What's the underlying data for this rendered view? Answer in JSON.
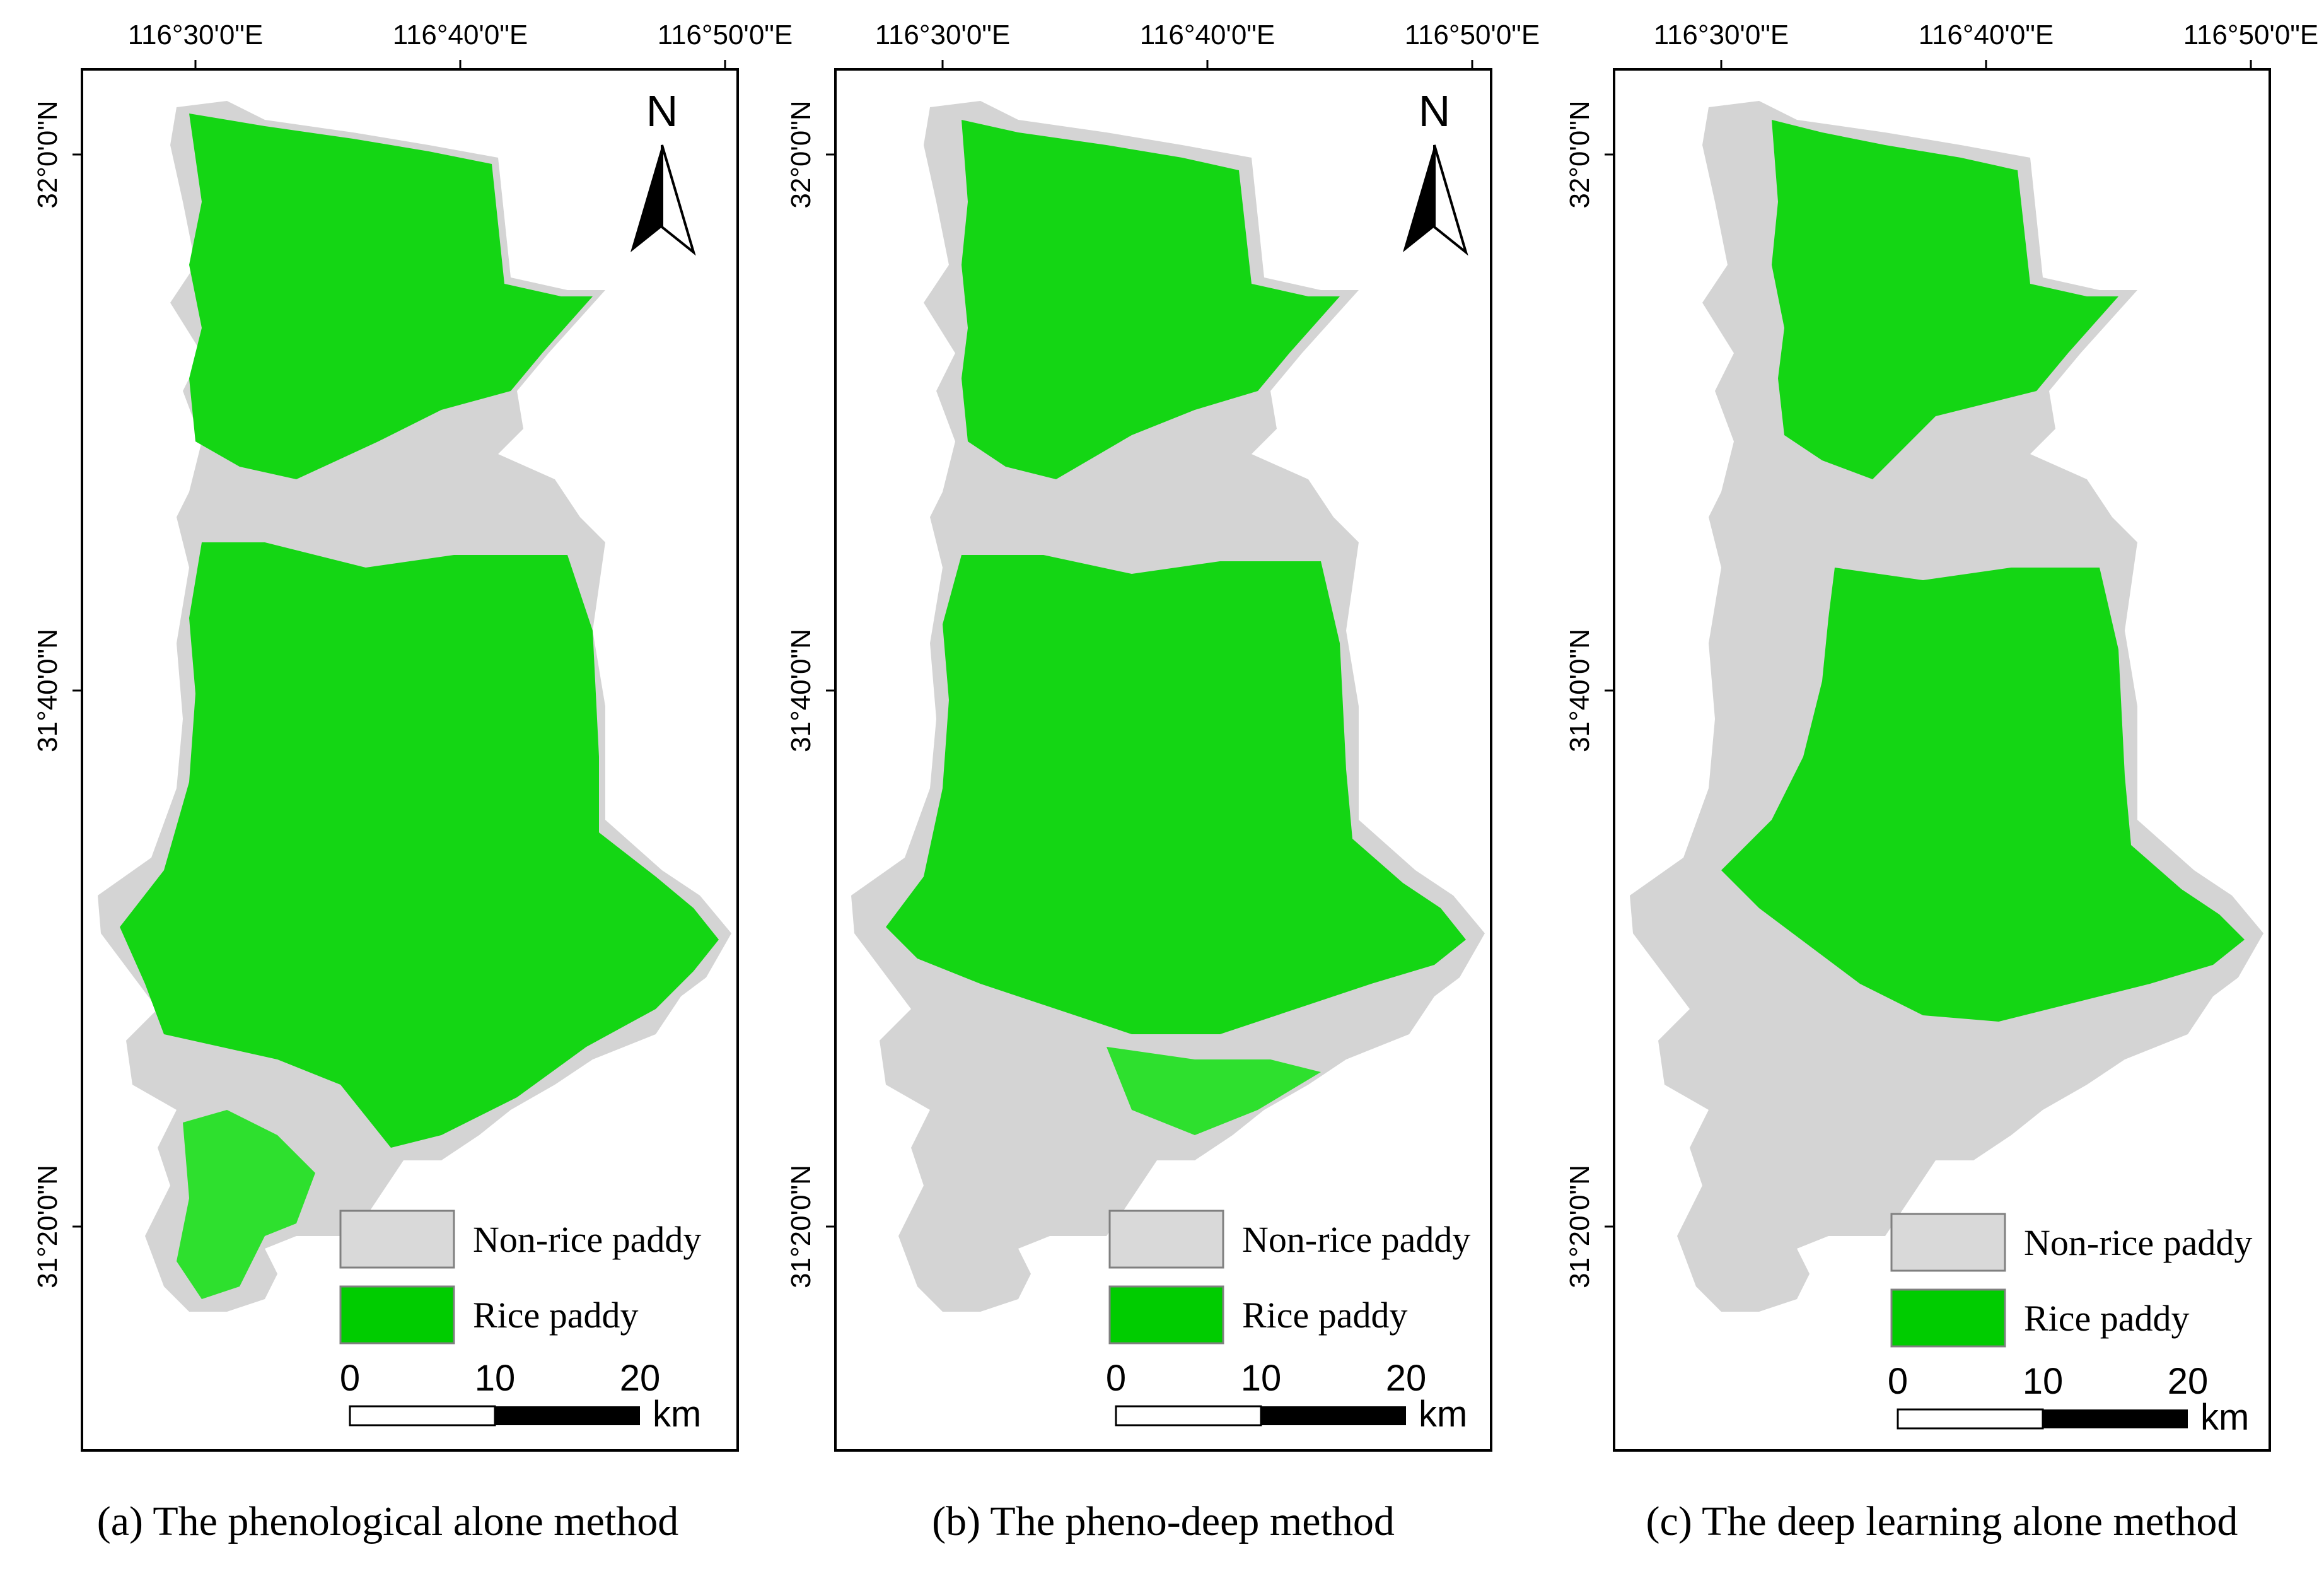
{
  "legend": {
    "non_rice_label": "Non-rice paddy",
    "rice_label": "Rice paddy",
    "non_rice_color": "#d9d9d9",
    "rice_color": "#00cc00"
  },
  "scale_bar": {
    "labels": [
      "0",
      "10",
      "20"
    ],
    "unit": "km"
  },
  "north_arrow": {
    "letter": "N"
  },
  "coordinates": {
    "longitude_labels": [
      "116°30'0\"E",
      "116°40'0\"E",
      "116°50'0\"E"
    ],
    "latitude_labels": [
      "32°0'0\"N",
      "31°40'0\"N",
      "31°20'0\"N"
    ]
  },
  "panels": [
    {
      "caption": "(a) The phenological alone method",
      "show_north_arrow": true,
      "rice_level": "high"
    },
    {
      "caption": "(b) The pheno-deep method",
      "show_north_arrow": true,
      "rice_level": "medium"
    },
    {
      "caption": "(c) The deep learning alone method",
      "show_north_arrow": false,
      "rice_level": "low"
    }
  ]
}
